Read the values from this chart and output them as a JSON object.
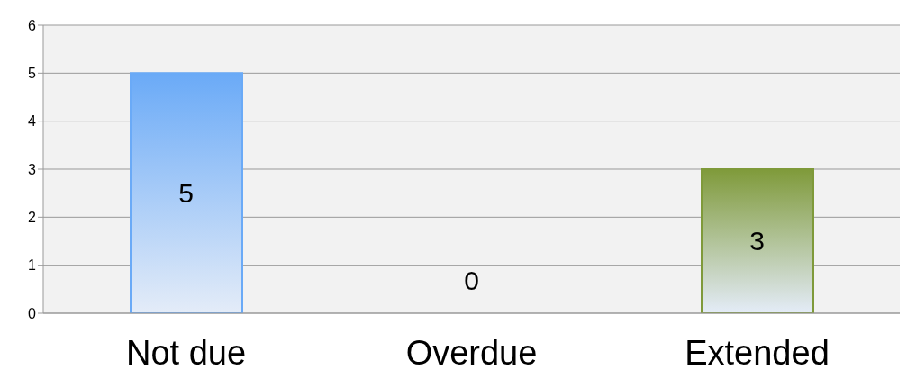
{
  "chart_data": {
    "type": "bar",
    "categories": [
      "Not due",
      "Overdue",
      "Extended"
    ],
    "values": [
      5,
      0,
      3
    ],
    "colors": [
      "#6aaaf7",
      "#c0504d",
      "#7f9a3a"
    ],
    "ylim": [
      0,
      6
    ],
    "yticks": [
      0,
      1,
      2,
      3,
      4,
      5,
      6
    ],
    "grid": "y",
    "data_labels": true
  }
}
